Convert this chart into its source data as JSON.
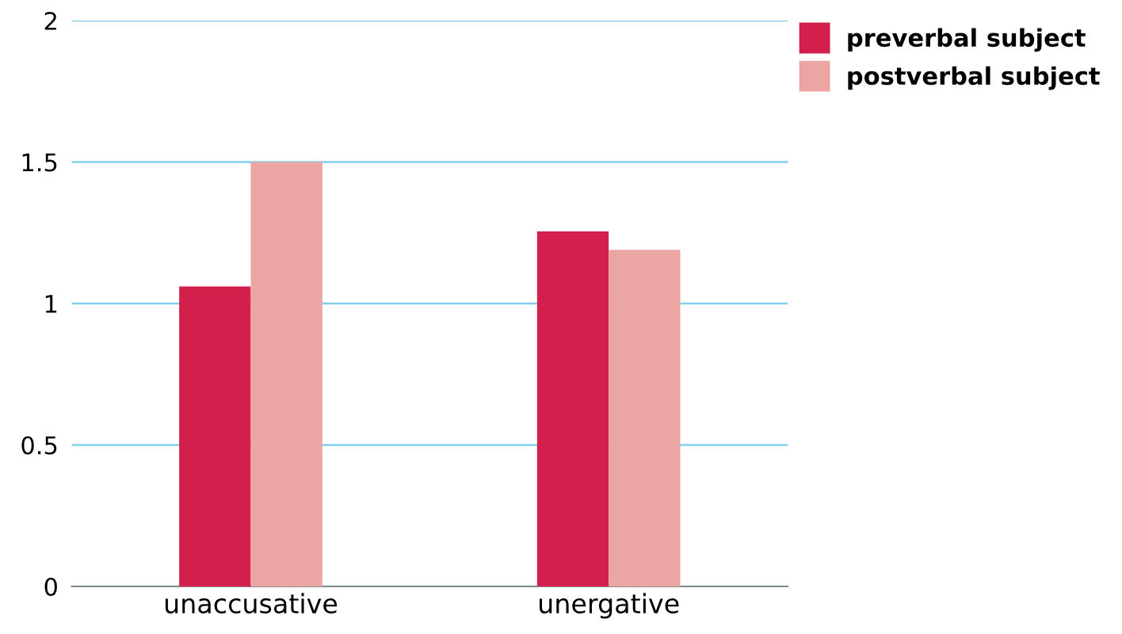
{
  "chart_data": {
    "type": "bar",
    "categories": [
      "unaccusative",
      "unergative"
    ],
    "series": [
      {
        "name": "preverbal subject",
        "color": "#d21f4b",
        "values": [
          1.06,
          1.255
        ]
      },
      {
        "name": "postverbal subject",
        "color": "#eba5a2",
        "values": [
          1.5,
          1.19
        ]
      }
    ],
    "ylim": [
      0,
      2
    ],
    "yticks": [
      0,
      0.5,
      1,
      1.5,
      2
    ],
    "grid": "y",
    "legend": "top right"
  }
}
